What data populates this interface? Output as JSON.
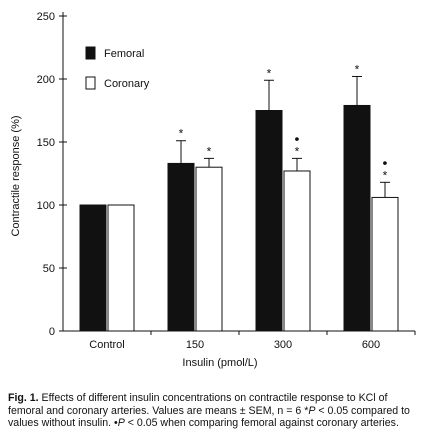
{
  "chart_data": {
    "type": "bar",
    "categories": [
      "Control",
      "150",
      "300",
      "600"
    ],
    "series": [
      {
        "name": "Femoral",
        "values": [
          100,
          133,
          175,
          179
        ],
        "sem": [
          0,
          18,
          24,
          23
        ],
        "color": "#111111"
      },
      {
        "name": "Coronary",
        "values": [
          100,
          130,
          127,
          106
        ],
        "sem": [
          0,
          7,
          10,
          12
        ],
        "color": "#ffffff"
      }
    ],
    "significance": {
      "star": [
        [
          false,
          true,
          true,
          true
        ],
        [
          false,
          true,
          true,
          true
        ]
      ],
      "dot": [
        [
          false,
          false,
          false,
          false
        ],
        [
          false,
          false,
          true,
          true
        ]
      ],
      "star_symbol": "*",
      "dot_symbol": "•"
    },
    "xlabel": "Insulin (pmol/L)",
    "ylabel": "Contractile response (%)",
    "ylim": [
      0,
      250
    ],
    "yticks": [
      0,
      50,
      100,
      150,
      200,
      250
    ],
    "legend_position": "top-left",
    "grid": false
  },
  "caption": {
    "label": "Fig. 1.",
    "text_1": " Effects of different insulin concentrations on contractile response to KCl of femoral and coronary arteries. Values are means ± SEM, n = 6 *",
    "p1": "P",
    "text_2": " < 0.05 compared to values without insulin. •",
    "p2": "P",
    "text_3": " < 0.05 when comparing femoral against coronary arteries."
  }
}
